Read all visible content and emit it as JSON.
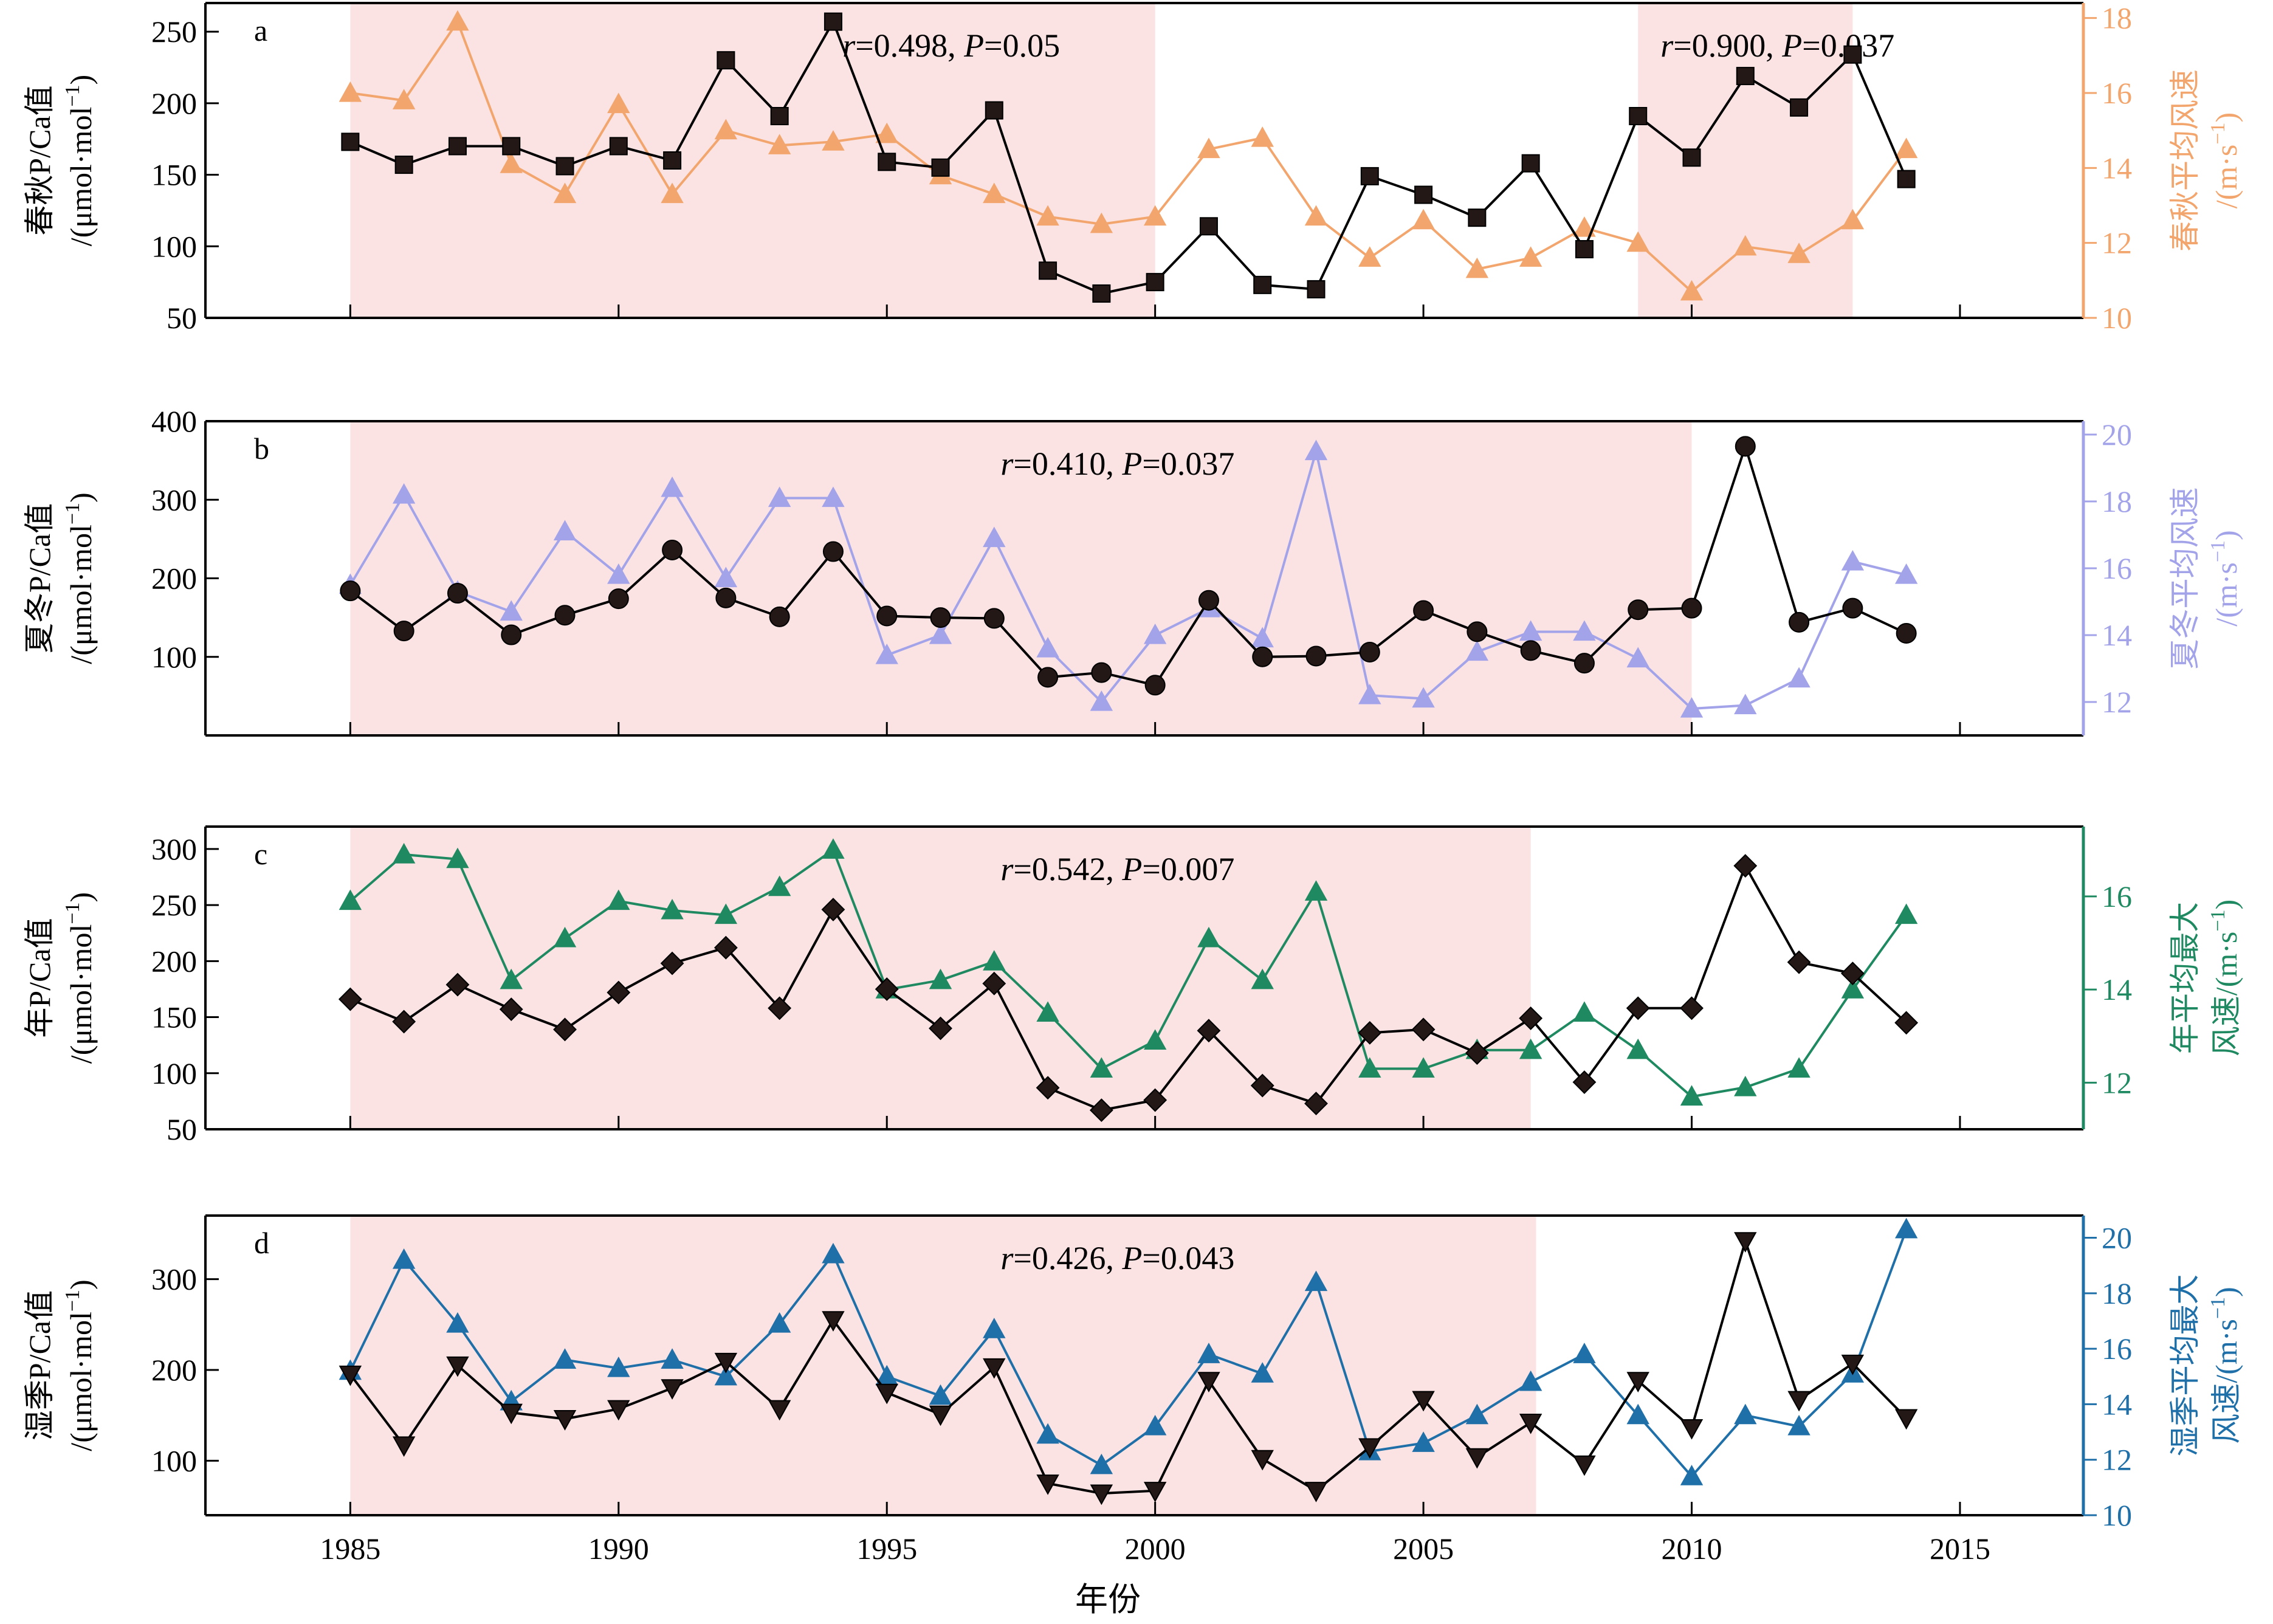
{
  "figure": {
    "xlabel": "年份",
    "xlim": [
      1982.3,
      2017.3
    ],
    "xticks": [
      1985,
      1990,
      1995,
      2000,
      2005,
      2010,
      2015
    ]
  },
  "chart_data": [
    {
      "id": "a",
      "type": "line",
      "panel_label": "a",
      "ylabel_lines": [
        "春秋P/Ca值",
        "/(μmol·mol",
        "−1",
        ")"
      ],
      "ylim": [
        50,
        270
      ],
      "yticks": [
        50,
        100,
        150,
        200,
        250
      ],
      "y2label_lines": [
        "春秋平均风速",
        "/(m·s",
        "−1",
        ")"
      ],
      "y2lim": [
        10,
        18.4
      ],
      "y2ticks": [
        10,
        12,
        14,
        16,
        18
      ],
      "y2_color": "#f2a66e",
      "highlight_ranges": [
        [
          1985,
          2000
        ],
        [
          2009,
          2013
        ]
      ],
      "annotations": [
        {
          "r_label": "r",
          "r_value": "=0.498, ",
          "p_label": "P",
          "p_value": "=0.05",
          "x": 1996.2
        },
        {
          "r_label": "r",
          "r_value": "=0.900, ",
          "p_label": "P",
          "p_value": "=0.037",
          "x": 2011.6
        }
      ],
      "series": [
        {
          "name": "春秋P/Ca值",
          "axis": "left",
          "marker": "square",
          "x": [
            1985,
            1986,
            1987,
            1988,
            1989,
            1990,
            1991,
            1992,
            1993,
            1994,
            1995,
            1996,
            1997,
            1998,
            1999,
            2000,
            2001,
            2002,
            2003,
            2004,
            2005,
            2006,
            2007,
            2008,
            2009,
            2010,
            2011,
            2012,
            2013,
            2014
          ],
          "values": [
            173,
            157,
            170,
            170,
            156,
            170,
            160,
            230,
            191,
            257,
            159,
            155,
            195,
            83,
            67,
            75,
            114,
            73,
            70,
            149,
            136,
            120,
            158,
            98,
            191,
            162,
            219,
            197,
            234,
            147
          ],
          "colors": {
            "line": "#000000",
            "fill": "#231815",
            "stroke": "#000000"
          }
        },
        {
          "name": "春秋平均风速",
          "axis": "right",
          "marker": "triangle-up",
          "x": [
            1985,
            1986,
            1987,
            1988,
            1989,
            1990,
            1991,
            1992,
            1993,
            1994,
            1995,
            1996,
            1997,
            1998,
            1999,
            2000,
            2001,
            2002,
            2003,
            2004,
            2005,
            2006,
            2007,
            2008,
            2009,
            2010,
            2011,
            2012,
            2013,
            2014
          ],
          "values": [
            16.0,
            15.8,
            17.9,
            14.1,
            13.3,
            15.7,
            13.3,
            15.0,
            14.6,
            14.7,
            14.9,
            13.8,
            13.3,
            12.7,
            12.5,
            12.7,
            14.5,
            14.8,
            12.7,
            11.6,
            12.6,
            11.3,
            11.6,
            12.4,
            12.0,
            10.7,
            11.9,
            11.7,
            12.6,
            14.5
          ],
          "colors": {
            "line": "#f2a66e",
            "fill": "#f2a66e",
            "stroke": "#f2a66e"
          }
        }
      ]
    },
    {
      "id": "b",
      "type": "line",
      "panel_label": "b",
      "ylabel_lines": [
        "夏冬P/Ca值",
        "/(μmol·mol",
        "−1",
        ")"
      ],
      "ylim": [
        0,
        400
      ],
      "yticks": [
        100,
        200,
        300,
        400
      ],
      "y2label_lines": [
        "夏冬平均风速",
        "/(m·s",
        "−1",
        ")"
      ],
      "y2lim": [
        11,
        20.4
      ],
      "y2ticks": [
        12,
        14,
        16,
        18,
        20
      ],
      "y2_color": "#a3a3ea",
      "highlight_ranges": [
        [
          1985,
          2010
        ]
      ],
      "annotations": [
        {
          "r_label": "r",
          "r_value": "=0.410, ",
          "p_label": "P",
          "p_value": "=0.037",
          "x": 1999.3
        }
      ],
      "series": [
        {
          "name": "夏冬P/Ca值",
          "axis": "left",
          "marker": "circle",
          "x": [
            1985,
            1986,
            1987,
            1988,
            1989,
            1990,
            1991,
            1992,
            1993,
            1994,
            1995,
            1996,
            1997,
            1998,
            1999,
            2000,
            2001,
            2002,
            2003,
            2004,
            2005,
            2006,
            2007,
            2008,
            2009,
            2010,
            2011,
            2012,
            2013,
            2014
          ],
          "values": [
            184,
            133,
            181,
            128,
            153,
            174,
            236,
            175,
            151,
            234,
            152,
            150,
            149,
            74,
            80,
            64,
            172,
            100,
            101,
            106,
            159,
            132,
            108,
            92,
            160,
            162,
            368,
            144,
            162,
            130
          ],
          "colors": {
            "line": "#000000",
            "fill": "#231815",
            "stroke": "#000000"
          }
        },
        {
          "name": "夏冬平均风速",
          "axis": "right",
          "marker": "triangle-up",
          "x": [
            1985,
            1986,
            1987,
            1988,
            1989,
            1990,
            1991,
            1992,
            1993,
            1994,
            1995,
            1996,
            1997,
            1998,
            1999,
            2000,
            2001,
            2002,
            2003,
            2004,
            2005,
            2006,
            2007,
            2008,
            2009,
            2010,
            2011,
            2012,
            2013,
            2014
          ],
          "values": [
            15.5,
            18.2,
            15.3,
            14.7,
            17.1,
            15.8,
            18.4,
            15.7,
            18.1,
            18.1,
            13.4,
            14.0,
            16.9,
            13.6,
            12.0,
            14.0,
            14.8,
            13.9,
            19.5,
            12.2,
            12.1,
            13.5,
            14.1,
            14.1,
            13.3,
            11.8,
            11.9,
            12.7,
            16.2,
            15.8
          ],
          "colors": {
            "line": "#a3a3ea",
            "fill": "#a3a3ea",
            "stroke": "#a3a3ea"
          }
        }
      ]
    },
    {
      "id": "c",
      "type": "line",
      "panel_label": "c",
      "ylabel_lines": [
        "年P/Ca值",
        "/(μmol·mol",
        "−1",
        ")"
      ],
      "ylim": [
        50,
        320
      ],
      "yticks": [
        50,
        100,
        150,
        200,
        250,
        300
      ],
      "y2label_lines": [
        "年平均最大",
        "风速/(m·s",
        "−1",
        ")"
      ],
      "y2lim": [
        11,
        17.5
      ],
      "y2ticks": [
        12,
        14,
        16
      ],
      "y2_color": "#1f8a62",
      "highlight_ranges": [
        [
          1985,
          2007
        ]
      ],
      "annotations": [
        {
          "r_label": "r",
          "r_value": "=0.542, ",
          "p_label": "P",
          "p_value": "=0.007",
          "x": 1999.3
        }
      ],
      "series": [
        {
          "name": "年P/Ca值",
          "axis": "left",
          "marker": "diamond",
          "x": [
            1985,
            1986,
            1987,
            1988,
            1989,
            1990,
            1991,
            1992,
            1993,
            1994,
            1995,
            1996,
            1997,
            1998,
            1999,
            2000,
            2001,
            2002,
            2003,
            2004,
            2005,
            2006,
            2007,
            2008,
            2009,
            2010,
            2011,
            2012,
            2013,
            2014
          ],
          "values": [
            166,
            146,
            179,
            157,
            139,
            172,
            198,
            212,
            158,
            246,
            175,
            140,
            180,
            87,
            67,
            76,
            138,
            89,
            73,
            136,
            139,
            118,
            149,
            92,
            158,
            158,
            285,
            199,
            189,
            145
          ],
          "colors": {
            "line": "#000000",
            "fill": "#231815",
            "stroke": "#000000"
          }
        },
        {
          "name": "年平均最大风速",
          "axis": "right",
          "marker": "triangle-up",
          "x": [
            1985,
            1986,
            1987,
            1988,
            1989,
            1990,
            1991,
            1992,
            1993,
            1994,
            1995,
            1996,
            1997,
            1998,
            1999,
            2000,
            2001,
            2002,
            2003,
            2004,
            2005,
            2006,
            2007,
            2008,
            2009,
            2010,
            2011,
            2012,
            2013,
            2014
          ],
          "values": [
            15.9,
            16.9,
            16.8,
            14.2,
            15.1,
            15.9,
            15.7,
            15.6,
            16.2,
            17.0,
            14.0,
            14.2,
            14.6,
            13.5,
            12.3,
            12.9,
            15.1,
            14.2,
            16.1,
            12.3,
            12.3,
            12.7,
            12.7,
            13.5,
            12.7,
            11.7,
            11.9,
            12.3,
            14.0,
            15.6
          ],
          "colors": {
            "line": "#1f8a62",
            "fill": "#1f8a62",
            "stroke": "#1f8a62"
          }
        }
      ]
    },
    {
      "id": "d",
      "type": "line",
      "panel_label": "d",
      "ylabel_lines": [
        "湿季P/Ca值",
        "/(μmol·mol",
        "−1",
        ")"
      ],
      "ylim": [
        40,
        370
      ],
      "yticks": [
        100,
        200,
        300
      ],
      "y2label_lines": [
        "湿季平均最大",
        "风速/(m·s",
        "−1",
        ")"
      ],
      "y2lim": [
        10,
        20.8
      ],
      "y2ticks": [
        10,
        12,
        14,
        16,
        18,
        20
      ],
      "y2_color": "#1f6fa8",
      "highlight_ranges": [
        [
          1985,
          2007.1
        ]
      ],
      "annotations": [
        {
          "r_label": "r",
          "r_value": "=0.426, ",
          "p_label": "P",
          "p_value": "=0.043",
          "x": 1999.3
        }
      ],
      "series": [
        {
          "name": "湿季P/Ca值",
          "axis": "left",
          "marker": "triangle-down",
          "x": [
            1985,
            1986,
            1987,
            1988,
            1989,
            1990,
            1991,
            1992,
            1993,
            1994,
            1995,
            1996,
            1997,
            1998,
            1999,
            2000,
            2001,
            2002,
            2003,
            2004,
            2005,
            2006,
            2007,
            2008,
            2009,
            2010,
            2011,
            2012,
            2013,
            2014
          ],
          "values": [
            195,
            117,
            205,
            153,
            146,
            157,
            180,
            209,
            157,
            255,
            175,
            151,
            203,
            75,
            64,
            67,
            188,
            102,
            67,
            115,
            167,
            104,
            142,
            96,
            188,
            136,
            342,
            167,
            207,
            147
          ],
          "colors": {
            "line": "#000000",
            "fill": "#231815",
            "stroke": "#000000"
          }
        },
        {
          "name": "湿季平均最大风速",
          "axis": "right",
          "marker": "triangle-up",
          "x": [
            1985,
            1986,
            1987,
            1988,
            1989,
            1990,
            1991,
            1992,
            1993,
            1994,
            1995,
            1996,
            1997,
            1998,
            1999,
            2000,
            2001,
            2002,
            2003,
            2004,
            2005,
            2006,
            2007,
            2008,
            2009,
            2010,
            2011,
            2012,
            2013,
            2014
          ],
          "values": [
            15.2,
            19.2,
            16.9,
            14.1,
            15.6,
            15.3,
            15.6,
            15.0,
            16.9,
            19.4,
            15.0,
            14.3,
            16.7,
            12.9,
            11.8,
            13.2,
            15.8,
            15.1,
            18.4,
            12.3,
            12.6,
            13.6,
            14.8,
            15.8,
            13.6,
            11.4,
            13.6,
            13.2,
            15.1,
            20.3
          ],
          "colors": {
            "line": "#1f6fa8",
            "fill": "#1f6fa8",
            "stroke": "#1f6fa8"
          }
        }
      ]
    }
  ],
  "style": {
    "highlight_color": "#fbe3e3",
    "axis_color": "#000000",
    "text_color": "#000000"
  }
}
